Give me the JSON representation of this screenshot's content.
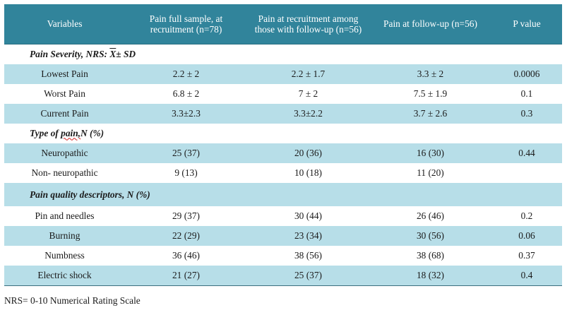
{
  "table": {
    "headers": [
      "Variables",
      "Pain full sample, at recruitment (n=78)",
      "Pain at recruitment among those with follow-up (n=56)",
      "Pain at follow-up (n=56)",
      "P value"
    ],
    "sections": {
      "severity": "Pain Severity, NRS: ",
      "severity_xbar": "X",
      "severity_suffix": "± SD",
      "type_prefix": "Type of ",
      "type_word": "pain,",
      "type_suffix": "N (%)",
      "quality": "Pain quality descriptors, N (%)"
    },
    "rows": {
      "lowest": [
        "Lowest Pain",
        "2.2 ± 2",
        "2.2 ± 1.7",
        "3.3 ± 2",
        "0.0006"
      ],
      "worst": [
        "Worst Pain",
        "6.8 ± 2",
        "7 ± 2",
        "7.5 ± 1.9",
        "0.1"
      ],
      "current": [
        "Current Pain",
        "3.3±2.3",
        "3.3±2.2",
        "3.7 ± 2.6",
        "0.3"
      ],
      "neuro": [
        "Neuropathic",
        "25 (37)",
        "20 (36)",
        "16 (30)",
        "0.44"
      ],
      "nonneuro": [
        "Non- neuropathic",
        "9 (13)",
        "10 (18)",
        "11 (20)",
        ""
      ],
      "pins": [
        "Pin and needles",
        "29 (37)",
        "30 (44)",
        "26 (46)",
        "0.2"
      ],
      "burning": [
        "Burning",
        "22 (29)",
        "23 (34)",
        "30 (56)",
        "0.06"
      ],
      "numbness": [
        "Numbness",
        "36 (46)",
        "38 (56)",
        "38 (68)",
        "0.37"
      ],
      "shock": [
        "Electric shock",
        "21 (27)",
        "25 (37)",
        "18 (32)",
        "0.4"
      ]
    }
  },
  "footnote": "NRS= 0-10 Numerical Rating Scale"
}
